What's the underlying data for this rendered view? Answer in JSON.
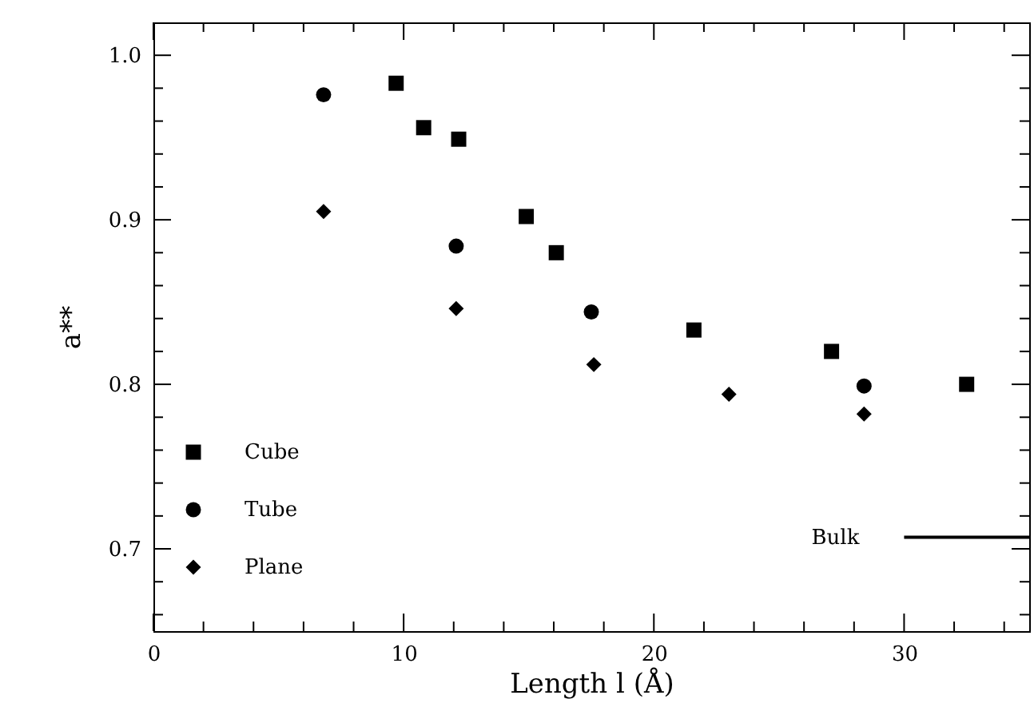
{
  "chart_data": {
    "type": "scatter",
    "xlabel": "Length l (Å)",
    "ylabel": "a**",
    "xlim": [
      0,
      35
    ],
    "ylim": [
      0.65,
      1.02
    ],
    "xticks": [
      0,
      {
        "value": 2,
        "label": null
      },
      {
        "value": 4,
        "label": null
      },
      {
        "value": 6,
        "label": null
      },
      {
        "value": 8,
        "label": null
      },
      10,
      {
        "value": 12,
        "label": null
      },
      {
        "value": 14,
        "label": null
      },
      {
        "value": 16,
        "label": null
      },
      {
        "value": 18,
        "label": null
      },
      20,
      {
        "value": 22,
        "label": null
      },
      {
        "value": 24,
        "label": null
      },
      {
        "value": 26,
        "label": null
      },
      {
        "value": 28,
        "label": null
      },
      30,
      {
        "value": 32,
        "label": null
      },
      {
        "value": 34,
        "label": null
      }
    ],
    "yticks": [
      {
        "value": 0.66,
        "label": null
      },
      {
        "value": 0.68,
        "label": null
      },
      0.7,
      {
        "value": 0.72,
        "label": null
      },
      {
        "value": 0.74,
        "label": null
      },
      {
        "value": 0.76,
        "label": null
      },
      {
        "value": 0.78,
        "label": null
      },
      0.8,
      {
        "value": 0.82,
        "label": null
      },
      {
        "value": 0.84,
        "label": null
      },
      {
        "value": 0.86,
        "label": null
      },
      {
        "value": 0.88,
        "label": null
      },
      0.9,
      {
        "value": 0.92,
        "label": null
      },
      {
        "value": 0.94,
        "label": null
      },
      {
        "value": 0.96,
        "label": null
      },
      {
        "value": 0.98,
        "label": null
      },
      {
        "value": 1.0,
        "label": "1.0"
      }
    ],
    "grid": false,
    "legend": "bottom left",
    "series": [
      {
        "name": "Cube",
        "color": "#000000",
        "marker": "square",
        "x": [
          9.7,
          10.8,
          12.2,
          14.9,
          16.1,
          21.6,
          27.1,
          32.5
        ],
        "values": [
          0.983,
          0.956,
          0.949,
          0.902,
          0.88,
          0.833,
          0.82,
          0.8
        ]
      },
      {
        "name": "Tube",
        "color": "#000000",
        "marker": "circle",
        "x": [
          6.8,
          12.1,
          17.5,
          28.4
        ],
        "values": [
          0.976,
          0.884,
          0.844,
          0.799
        ]
      },
      {
        "name": "Plane",
        "color": "#000000",
        "marker": "diamond",
        "x": [
          6.8,
          12.1,
          17.6,
          23.0,
          28.4
        ],
        "values": [
          0.905,
          0.846,
          0.812,
          0.794,
          0.782
        ]
      },
      {
        "name": "Bulk",
        "type": "line",
        "color": "#000000",
        "marker": "none",
        "line_style": "solid",
        "x": [
          30,
          35
        ],
        "values": [
          0.707,
          0.707
        ]
      }
    ]
  }
}
